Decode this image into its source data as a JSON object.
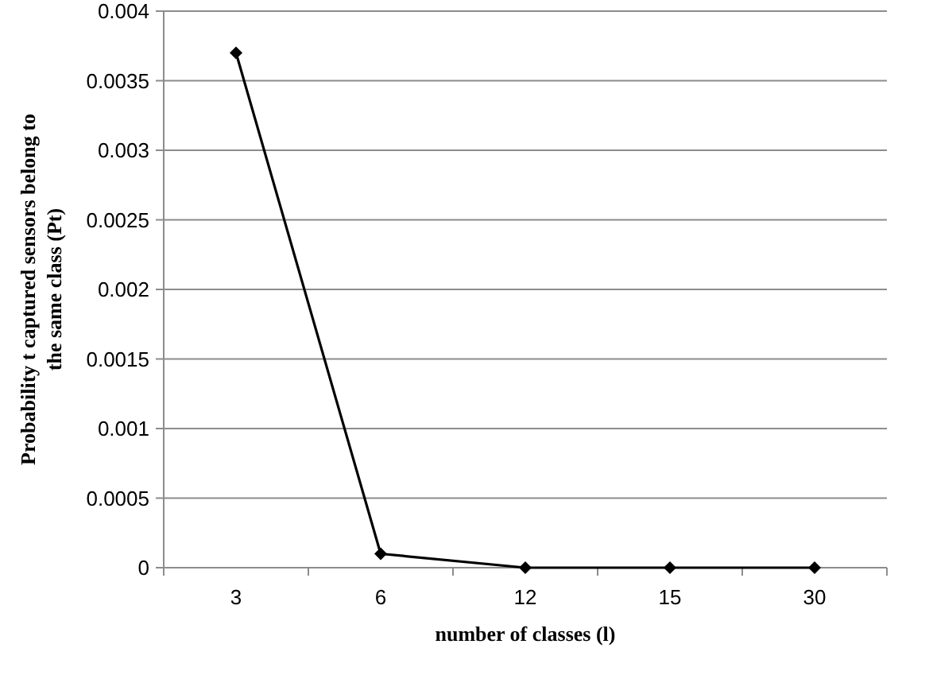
{
  "chart_data": {
    "type": "line",
    "xlabel": "number of classes (l)",
    "ylabel": "Probability t captured sensors belong to the same class (Pt)",
    "categories": [
      "3",
      "6",
      "12",
      "15",
      "30"
    ],
    "series": [
      {
        "color": "#000000",
        "values": [
          0.0037,
          0.0001,
          0,
          0,
          0
        ]
      }
    ],
    "ylim": [
      0,
      0.004
    ],
    "yticks": [
      0,
      0.0005,
      0.001,
      0.0015,
      0.002,
      0.0025,
      0.003,
      0.0035,
      0.004
    ],
    "grid": "y",
    "marker": "diamond",
    "line_style": "solid"
  }
}
